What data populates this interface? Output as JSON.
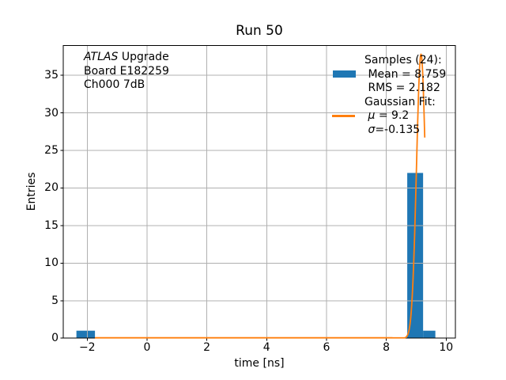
{
  "colors": {
    "bar": "#1f77b4",
    "fit_line": "#ff7f0e",
    "grid": "#b0b0b0",
    "text": "#000000",
    "background": "#ffffff"
  },
  "annotation": {
    "lines": [
      {
        "pre": "",
        "italic": "ATLAS",
        "text": " Upgrade"
      },
      {
        "pre": "",
        "italic": "",
        "text": "Board E182259"
      },
      {
        "pre": "",
        "italic": "",
        "text": "Ch000 7dB"
      }
    ]
  },
  "legend": {
    "rows": [
      {
        "handle": "none",
        "color": "",
        "pre": "",
        "italic": "",
        "text": "Samples (24):"
      },
      {
        "handle": "patch",
        "color": "#1f77b4",
        "pre": " ",
        "italic": "",
        "text": "Mean = 8.759"
      },
      {
        "handle": "none",
        "color": "",
        "pre": " ",
        "italic": "",
        "text": "RMS = 2.182"
      },
      {
        "handle": "none",
        "color": "",
        "pre": "",
        "italic": "",
        "text": "Gaussian Fit:"
      },
      {
        "handle": "line",
        "color": "#ff7f0e",
        "pre": " ",
        "italic": "μ",
        "text": " = 9.2"
      },
      {
        "handle": "none",
        "color": "",
        "pre": " ",
        "italic": "σ",
        "text": "=-0.135"
      }
    ]
  },
  "chart_data": {
    "type": "bar",
    "subtype": "histogram-with-gaussian-fit",
    "title": "Run 50",
    "xlabel": "time [ns]",
    "ylabel": "Entries",
    "xlim": [
      -2.8,
      10.31
    ],
    "ylim": [
      0,
      38.95
    ],
    "xticks": [
      "−2",
      "0",
      "2",
      "4",
      "6",
      "8",
      "10"
    ],
    "xtick_values": [
      -2,
      0,
      2,
      4,
      6,
      8,
      10
    ],
    "yticks": [
      "0",
      "5",
      "10",
      "15",
      "20",
      "25",
      "30",
      "35"
    ],
    "ytick_values": [
      0,
      5,
      10,
      15,
      20,
      25,
      30,
      35
    ],
    "grid": true,
    "legend_position": "upper right",
    "legend_frame": false,
    "histogram": {
      "color": "#1f77b4",
      "bins": [
        {
          "x0": -2.36,
          "x1": -1.74,
          "count": 1
        },
        {
          "x0": 8.7,
          "x1": 9.23,
          "count": 22
        },
        {
          "x0": 9.23,
          "x1": 9.64,
          "count": 1
        }
      ]
    },
    "gaussian_fit": {
      "color": "#ff7f0e",
      "amplitude": 37.8,
      "mu_drawn": 9.16,
      "sigma_drawn": 0.15,
      "x_start": -1.74,
      "x_end": 9.285
    },
    "stats": {
      "samples": 24,
      "mean": 8.759,
      "rms": 2.182,
      "fit_mu": 9.2,
      "fit_sigma": -0.135
    }
  }
}
